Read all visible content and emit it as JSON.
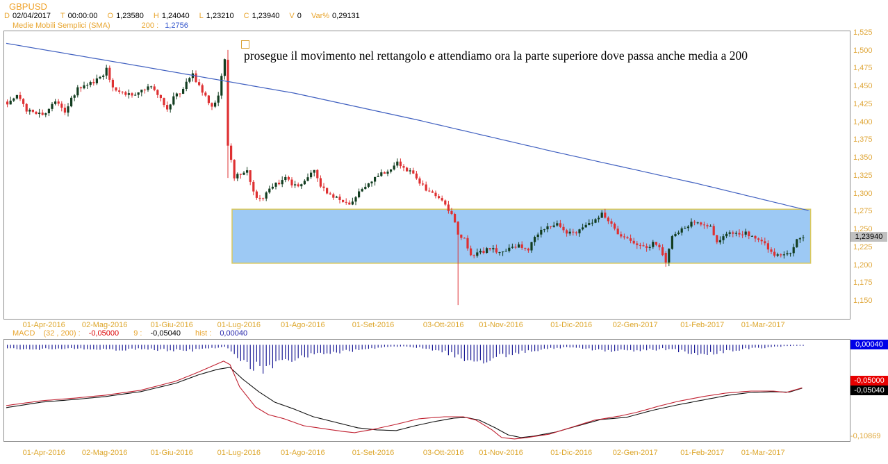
{
  "header": {
    "symbol": "GBPUSD",
    "fields": [
      {
        "label": "D",
        "value": "02/04/2017"
      },
      {
        "label": "T",
        "value": "00:00:00"
      },
      {
        "label": "O",
        "value": "1,23580"
      },
      {
        "label": "H",
        "value": "1,24040"
      },
      {
        "label": "L",
        "value": "1,23210"
      },
      {
        "label": "C",
        "value": "1,23940"
      },
      {
        "label": "V",
        "value": "0"
      },
      {
        "label": "Var%",
        "value": "0,29131"
      }
    ],
    "sma_row": {
      "name": "Medie Mobili Semplici (SMA)",
      "period": "200 :",
      "value": "1,2756"
    }
  },
  "annotation": {
    "marker": "rectangle-anchor-square",
    "text": "prosegue il movimento nel rettangolo e attendiamo ora la parte superiore dove passa anche media a 200"
  },
  "price_axis": {
    "ticks": [
      "1,525",
      "1,500",
      "1,475",
      "1,450",
      "1,425",
      "1,400",
      "1,375",
      "1,350",
      "1,325",
      "1,300",
      "1,275",
      "1,250",
      "1,225",
      "1,200",
      "1,175",
      "1,150"
    ],
    "current_label": "1,23940"
  },
  "date_axis": {
    "labels": [
      "01-Apr-2016",
      "02-Mag-2016",
      "01-Giu-2016",
      "01-Lug-2016",
      "01-Ago-2016",
      "01-Set-2016",
      "03-Ott-2016",
      "01-Nov-2016",
      "01-Dic-2016",
      "02-Gen-2017",
      "01-Feb-2017",
      "01-Mar-2017"
    ]
  },
  "macd_header": {
    "name": "MACD",
    "params": "(32 , 200) :",
    "macd_value": "-0,05000",
    "signal_label": "9 :",
    "signal_value": "-0,05040",
    "hist_label": "hist :",
    "hist_value": "0,00040"
  },
  "macd_axis": {
    "hist": "0,00040",
    "macd": "-0,05000",
    "signal": "-0,05040",
    "min": "-0,10869"
  },
  "colors": {
    "label_orange": "#DDA62B",
    "header_orange": "#E8A42C",
    "sma_blue": "#4060C0",
    "blue_value": "#3355CC",
    "candle_up": "#123D20",
    "candle_down": "#DE3032",
    "rect_fill": "#9DC9F4",
    "rect_border": "#D9C85D",
    "macd_line": "#C02030",
    "signal_line": "#111111",
    "hist_navy": "#1C1C96",
    "price_label_bg": "#C0C0C0",
    "hist_box_bg": "#0000E8",
    "macd_box_bg": "#E80000",
    "signal_box_bg": "#000000",
    "panel_border": "#8C8C8C"
  },
  "chart_data": {
    "type": "candlestick",
    "symbol": "GBPUSD",
    "timeframe": "daily",
    "title": "GBPUSD daily with SMA(200), highlighted rectangle zone and MACD(32,200,9)",
    "price_range": [
      1.1257,
      1.5279
    ],
    "price_ticks": [
      1.525,
      1.5,
      1.475,
      1.45,
      1.425,
      1.4,
      1.375,
      1.35,
      1.325,
      1.3,
      1.275,
      1.25,
      1.225,
      1.2,
      1.175,
      1.15
    ],
    "num_candles": 250,
    "last_ohlc": {
      "open": 1.2358,
      "high": 1.2404,
      "low": 1.2321,
      "close": 1.2394,
      "volume": 0,
      "var_pct": 0.29131
    },
    "month_tick_indices": [
      12,
      31,
      52,
      73,
      93,
      115,
      137,
      155,
      177,
      197,
      218,
      237
    ],
    "close_anchors": [
      [
        0,
        1.426
      ],
      [
        3,
        1.438
      ],
      [
        6,
        1.418
      ],
      [
        9,
        1.41
      ],
      [
        12,
        1.414
      ],
      [
        15,
        1.428
      ],
      [
        18,
        1.417
      ],
      [
        22,
        1.447
      ],
      [
        26,
        1.455
      ],
      [
        29,
        1.463
      ],
      [
        31,
        1.474
      ],
      [
        33,
        1.449
      ],
      [
        36,
        1.444
      ],
      [
        39,
        1.436
      ],
      [
        42,
        1.447
      ],
      [
        45,
        1.452
      ],
      [
        47,
        1.44
      ],
      [
        50,
        1.42
      ],
      [
        52,
        1.436
      ],
      [
        54,
        1.443
      ],
      [
        56,
        1.456
      ],
      [
        58,
        1.466
      ],
      [
        60,
        1.452
      ],
      [
        62,
        1.438
      ],
      [
        64,
        1.421
      ],
      [
        66,
        1.435
      ],
      [
        67,
        1.466
      ],
      [
        68,
        1.4877
      ],
      [
        69,
        1.3679
      ],
      [
        71,
        1.3225
      ],
      [
        73,
        1.329
      ],
      [
        75,
        1.3345
      ],
      [
        77,
        1.302
      ],
      [
        79,
        1.2932
      ],
      [
        81,
        1.3005
      ],
      [
        84,
        1.314
      ],
      [
        87,
        1.3225
      ],
      [
        90,
        1.311
      ],
      [
        93,
        1.3175
      ],
      [
        96,
        1.332
      ],
      [
        98,
        1.311
      ],
      [
        101,
        1.3
      ],
      [
        104,
        1.293
      ],
      [
        107,
        1.288
      ],
      [
        110,
        1.302
      ],
      [
        113,
        1.3135
      ],
      [
        116,
        1.328
      ],
      [
        119,
        1.33
      ],
      [
        122,
        1.3445
      ],
      [
        125,
        1.334
      ],
      [
        128,
        1.323
      ],
      [
        131,
        1.3045
      ],
      [
        134,
        1.297
      ],
      [
        137,
        1.2845
      ],
      [
        139,
        1.2725
      ],
      [
        141,
        1.2435
      ],
      [
        143,
        1.237
      ],
      [
        145,
        1.2123
      ],
      [
        148,
        1.219
      ],
      [
        151,
        1.2235
      ],
      [
        154,
        1.219
      ],
      [
        157,
        1.2245
      ],
      [
        160,
        1.228
      ],
      [
        163,
        1.224
      ],
      [
        166,
        1.2462
      ],
      [
        169,
        1.255
      ],
      [
        172,
        1.2595
      ],
      [
        175,
        1.2445
      ],
      [
        178,
        1.248
      ],
      [
        181,
        1.259
      ],
      [
        184,
        1.263
      ],
      [
        186,
        1.272
      ],
      [
        189,
        1.256
      ],
      [
        192,
        1.2415
      ],
      [
        195,
        1.236
      ],
      [
        198,
        1.229
      ],
      [
        200,
        1.2225
      ],
      [
        202,
        1.234
      ],
      [
        204,
        1.223
      ],
      [
        206,
        1.2045
      ],
      [
        208,
        1.2415
      ],
      [
        211,
        1.253
      ],
      [
        214,
        1.259
      ],
      [
        217,
        1.258
      ],
      [
        220,
        1.253
      ],
      [
        222,
        1.2345
      ],
      [
        225,
        1.244
      ],
      [
        228,
        1.246
      ],
      [
        231,
        1.2465
      ],
      [
        234,
        1.238
      ],
      [
        237,
        1.229
      ],
      [
        240,
        1.2165
      ],
      [
        243,
        1.215
      ],
      [
        245,
        1.22
      ],
      [
        247,
        1.235
      ],
      [
        249,
        1.2394
      ]
    ],
    "ohlc_overrides": {
      "69": {
        "open": 1.488,
        "high": 1.5018,
        "low": 1.3228,
        "close": 1.3679
      },
      "141": {
        "open": 1.2615,
        "high": 1.2625,
        "low": 1.145,
        "close": 1.2435
      },
      "206": {
        "open": 1.218,
        "high": 1.2205,
        "low": 1.1985,
        "close": 1.2045
      }
    },
    "sma200": {
      "period": 200,
      "current": 1.2756,
      "anchors": [
        [
          0,
          1.511
        ],
        [
          42,
          1.479
        ],
        [
          90,
          1.4414
        ],
        [
          129,
          1.4035
        ],
        [
          172,
          1.3588
        ],
        [
          216,
          1.3151
        ],
        [
          251,
          1.2772
        ]
      ]
    },
    "rectangle": {
      "from_index": 71,
      "to_index": 252,
      "top": 1.279,
      "bottom": 1.2035
    },
    "macd": {
      "fast": 32,
      "slow": 200,
      "signal_period": 9,
      "value_range": [
        -0.112,
        0.006
      ],
      "axis_min_label": -0.10869,
      "current": {
        "macd": -0.05,
        "signal": -0.0504,
        "hist": 0.0004
      },
      "macd_anchors": [
        [
          0,
          -0.0707
        ],
        [
          11,
          -0.0651
        ],
        [
          22,
          -0.0618
        ],
        [
          31,
          -0.0586
        ],
        [
          42,
          -0.0529
        ],
        [
          53,
          -0.0424
        ],
        [
          60,
          -0.0319
        ],
        [
          65,
          -0.0238
        ],
        [
          68,
          -0.019
        ],
        [
          70,
          -0.023
        ],
        [
          73,
          -0.0489
        ],
        [
          78,
          -0.0723
        ],
        [
          82,
          -0.0812
        ],
        [
          87,
          -0.0861
        ],
        [
          93,
          -0.0941
        ],
        [
          99,
          -0.0974
        ],
        [
          105,
          -0.1006
        ],
        [
          109,
          -0.1022
        ],
        [
          115,
          -0.0982
        ],
        [
          122,
          -0.0925
        ],
        [
          129,
          -0.0861
        ],
        [
          137,
          -0.0837
        ],
        [
          143,
          -0.0837
        ],
        [
          147,
          -0.0877
        ],
        [
          152,
          -0.099
        ],
        [
          155,
          -0.1079
        ],
        [
          159,
          -0.1095
        ],
        [
          163,
          -0.1079
        ],
        [
          170,
          -0.1039
        ],
        [
          177,
          -0.0958
        ],
        [
          184,
          -0.0877
        ],
        [
          192,
          -0.0828
        ],
        [
          197,
          -0.0788
        ],
        [
          204,
          -0.0715
        ],
        [
          210,
          -0.0659
        ],
        [
          218,
          -0.0602
        ],
        [
          225,
          -0.0562
        ],
        [
          233,
          -0.0538
        ],
        [
          240,
          -0.0538
        ],
        [
          244,
          -0.0554
        ],
        [
          249,
          -0.05
        ]
      ],
      "signal_anchors": [
        [
          0,
          -0.0731
        ],
        [
          11,
          -0.0667
        ],
        [
          22,
          -0.0634
        ],
        [
          31,
          -0.0602
        ],
        [
          42,
          -0.0545
        ],
        [
          53,
          -0.0448
        ],
        [
          60,
          -0.0351
        ],
        [
          66,
          -0.0286
        ],
        [
          70,
          -0.0262
        ],
        [
          74,
          -0.04
        ],
        [
          79,
          -0.0545
        ],
        [
          84,
          -0.0667
        ],
        [
          90,
          -0.0747
        ],
        [
          96,
          -0.0836
        ],
        [
          103,
          -0.0901
        ],
        [
          110,
          -0.0966
        ],
        [
          116,
          -0.099
        ],
        [
          122,
          -0.0998
        ],
        [
          128,
          -0.0941
        ],
        [
          134,
          -0.0893
        ],
        [
          140,
          -0.0853
        ],
        [
          144,
          -0.0845
        ],
        [
          148,
          -0.0877
        ],
        [
          153,
          -0.0966
        ],
        [
          157,
          -0.1047
        ],
        [
          161,
          -0.1079
        ],
        [
          165,
          -0.1063
        ],
        [
          172,
          -0.1014
        ],
        [
          179,
          -0.0941
        ],
        [
          186,
          -0.0869
        ],
        [
          194,
          -0.0844
        ],
        [
          202,
          -0.0764
        ],
        [
          210,
          -0.0699
        ],
        [
          218,
          -0.0642
        ],
        [
          226,
          -0.0586
        ],
        [
          233,
          -0.0554
        ],
        [
          240,
          -0.0546
        ],
        [
          245,
          -0.055
        ],
        [
          249,
          -0.0504
        ]
      ],
      "hist_anchors": [
        [
          0,
          -0.004
        ],
        [
          10,
          -0.005
        ],
        [
          20,
          -0.004
        ],
        [
          30,
          -0.006
        ],
        [
          40,
          -0.005
        ],
        [
          50,
          -0.006
        ],
        [
          55,
          -0.007
        ],
        [
          60,
          -0.006
        ],
        [
          65,
          -0.004
        ],
        [
          68,
          -0.002
        ],
        [
          70,
          -0.008
        ],
        [
          72,
          -0.015
        ],
        [
          75,
          -0.022
        ],
        [
          78,
          -0.026
        ],
        [
          80,
          -0.027
        ],
        [
          83,
          -0.025
        ],
        [
          86,
          -0.021
        ],
        [
          90,
          -0.016
        ],
        [
          95,
          -0.012
        ],
        [
          100,
          -0.009
        ],
        [
          105,
          -0.008
        ],
        [
          110,
          -0.006
        ],
        [
          115,
          -0.004
        ],
        [
          120,
          -0.002
        ],
        [
          125,
          -0.002
        ],
        [
          130,
          -0.004
        ],
        [
          135,
          -0.007
        ],
        [
          138,
          -0.01
        ],
        [
          141,
          -0.013
        ],
        [
          144,
          -0.017
        ],
        [
          147,
          -0.019
        ],
        [
          150,
          -0.018
        ],
        [
          153,
          -0.015
        ],
        [
          156,
          -0.012
        ],
        [
          160,
          -0.009
        ],
        [
          164,
          -0.007
        ],
        [
          168,
          -0.005
        ],
        [
          172,
          -0.004
        ],
        [
          176,
          -0.003
        ],
        [
          180,
          -0.004
        ],
        [
          185,
          -0.006
        ],
        [
          190,
          -0.007
        ],
        [
          195,
          -0.007
        ],
        [
          200,
          -0.006
        ],
        [
          205,
          -0.005
        ],
        [
          210,
          -0.007
        ],
        [
          214,
          -0.009
        ],
        [
          218,
          -0.01
        ],
        [
          222,
          -0.009
        ],
        [
          226,
          -0.007
        ],
        [
          230,
          -0.005
        ],
        [
          234,
          -0.004
        ],
        [
          238,
          -0.003
        ],
        [
          242,
          -0.002
        ],
        [
          246,
          -0.001
        ],
        [
          249,
          0.0004
        ]
      ]
    }
  }
}
